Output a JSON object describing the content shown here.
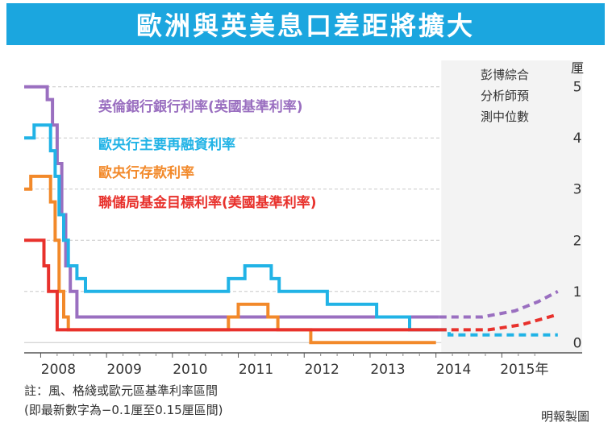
{
  "title": "歐洲與英美息口差距將擴大",
  "chart_data": {
    "type": "line",
    "unit": "厘",
    "ylim": [
      -0.2,
      5.2
    ],
    "yticks": [
      0,
      1,
      2,
      3,
      4,
      5
    ],
    "ytick_labels": [
      "0",
      "1",
      "2",
      "3",
      "4",
      "5"
    ],
    "xlim": [
      2007.75,
      2015.95
    ],
    "xtick_labels": [
      {
        "label": "2008",
        "x": 2008.0
      },
      {
        "label": "2009",
        "x": 2009.0
      },
      {
        "label": "2010",
        "x": 2010.0
      },
      {
        "label": "2011",
        "x": 2011.0
      },
      {
        "label": "2012",
        "x": 2012.0
      },
      {
        "label": "2013",
        "x": 2013.0
      },
      {
        "label": "2014",
        "x": 2014.0
      },
      {
        "label": "2015年",
        "x": 2015.0
      }
    ],
    "forecast_start": 2014.08,
    "forecast_note": [
      "彭博綜合",
      "分析師預",
      "測中位數"
    ],
    "series": [
      {
        "name": "英倫銀行銀行利率(英國基準利率)",
        "color": "#9a6fc0",
        "points": [
          [
            2007.75,
            5.0
          ],
          [
            2008.1,
            5.0
          ],
          [
            2008.1,
            4.75
          ],
          [
            2008.18,
            4.75
          ],
          [
            2008.18,
            4.25
          ],
          [
            2008.25,
            4.25
          ],
          [
            2008.25,
            3.5
          ],
          [
            2008.32,
            3.5
          ],
          [
            2008.32,
            2.5
          ],
          [
            2008.38,
            2.5
          ],
          [
            2008.38,
            1.5
          ],
          [
            2008.45,
            1.5
          ],
          [
            2008.45,
            1.0
          ],
          [
            2008.55,
            1.0
          ],
          [
            2008.55,
            0.5
          ],
          [
            2014.05,
            0.5
          ]
        ],
        "forecast": [
          [
            2014.05,
            0.5
          ],
          [
            2014.7,
            0.5
          ],
          [
            2015.2,
            0.62
          ],
          [
            2015.55,
            0.8
          ],
          [
            2015.85,
            1.0
          ]
        ]
      },
      {
        "name": "歐央行主要再融資利率",
        "color": "#21b3e6",
        "points": [
          [
            2007.75,
            4.0
          ],
          [
            2007.9,
            4.0
          ],
          [
            2007.9,
            4.25
          ],
          [
            2008.15,
            4.25
          ],
          [
            2008.15,
            3.75
          ],
          [
            2008.22,
            3.75
          ],
          [
            2008.22,
            3.25
          ],
          [
            2008.28,
            3.25
          ],
          [
            2008.28,
            2.5
          ],
          [
            2008.35,
            2.5
          ],
          [
            2008.35,
            2.0
          ],
          [
            2008.42,
            2.0
          ],
          [
            2008.42,
            1.5
          ],
          [
            2008.55,
            1.5
          ],
          [
            2008.55,
            1.25
          ],
          [
            2008.68,
            1.25
          ],
          [
            2008.68,
            1.0
          ],
          [
            2010.85,
            1.0
          ],
          [
            2010.85,
            1.25
          ],
          [
            2011.1,
            1.25
          ],
          [
            2011.1,
            1.5
          ],
          [
            2011.5,
            1.5
          ],
          [
            2011.5,
            1.25
          ],
          [
            2011.62,
            1.25
          ],
          [
            2011.62,
            1.0
          ],
          [
            2012.35,
            1.0
          ],
          [
            2012.35,
            0.75
          ],
          [
            2013.1,
            0.75
          ],
          [
            2013.1,
            0.5
          ],
          [
            2013.6,
            0.5
          ],
          [
            2013.6,
            0.25
          ],
          [
            2014.05,
            0.25
          ]
        ],
        "forecast": [
          [
            2014.05,
            0.25
          ],
          [
            2014.2,
            0.25
          ],
          [
            2014.2,
            0.15
          ],
          [
            2015.85,
            0.15
          ]
        ]
      },
      {
        "name": "歐央行存款利率",
        "color": "#f2892a",
        "points": [
          [
            2007.75,
            3.0
          ],
          [
            2007.85,
            3.0
          ],
          [
            2007.85,
            3.25
          ],
          [
            2008.15,
            3.25
          ],
          [
            2008.15,
            2.75
          ],
          [
            2008.22,
            2.75
          ],
          [
            2008.22,
            2.0
          ],
          [
            2008.28,
            2.0
          ],
          [
            2008.28,
            1.0
          ],
          [
            2008.35,
            1.0
          ],
          [
            2008.35,
            0.5
          ],
          [
            2008.42,
            0.5
          ],
          [
            2008.42,
            0.25
          ],
          [
            2010.85,
            0.25
          ],
          [
            2010.85,
            0.5
          ],
          [
            2011.0,
            0.5
          ],
          [
            2011.0,
            0.75
          ],
          [
            2011.45,
            0.75
          ],
          [
            2011.45,
            0.5
          ],
          [
            2011.6,
            0.5
          ],
          [
            2011.6,
            0.25
          ],
          [
            2012.1,
            0.25
          ],
          [
            2012.1,
            0.0
          ],
          [
            2014.0,
            0.0
          ]
        ],
        "forecast": []
      },
      {
        "name": "聯儲局基金目標利率(美國基準利率)",
        "color": "#e8312c",
        "points": [
          [
            2007.75,
            2.0
          ],
          [
            2008.05,
            2.0
          ],
          [
            2008.05,
            1.5
          ],
          [
            2008.12,
            1.5
          ],
          [
            2008.12,
            1.0
          ],
          [
            2008.25,
            1.0
          ],
          [
            2008.25,
            0.25
          ],
          [
            2014.05,
            0.25
          ]
        ],
        "forecast": [
          [
            2014.05,
            0.25
          ],
          [
            2014.8,
            0.25
          ],
          [
            2015.3,
            0.35
          ],
          [
            2015.85,
            0.55
          ]
        ]
      }
    ],
    "notes": [
      "註：風、格綫或歐元區基準利率區間",
      "(即最新數字為−0.1厘至0.15厘區間)"
    ],
    "credit": "明報製圖"
  }
}
